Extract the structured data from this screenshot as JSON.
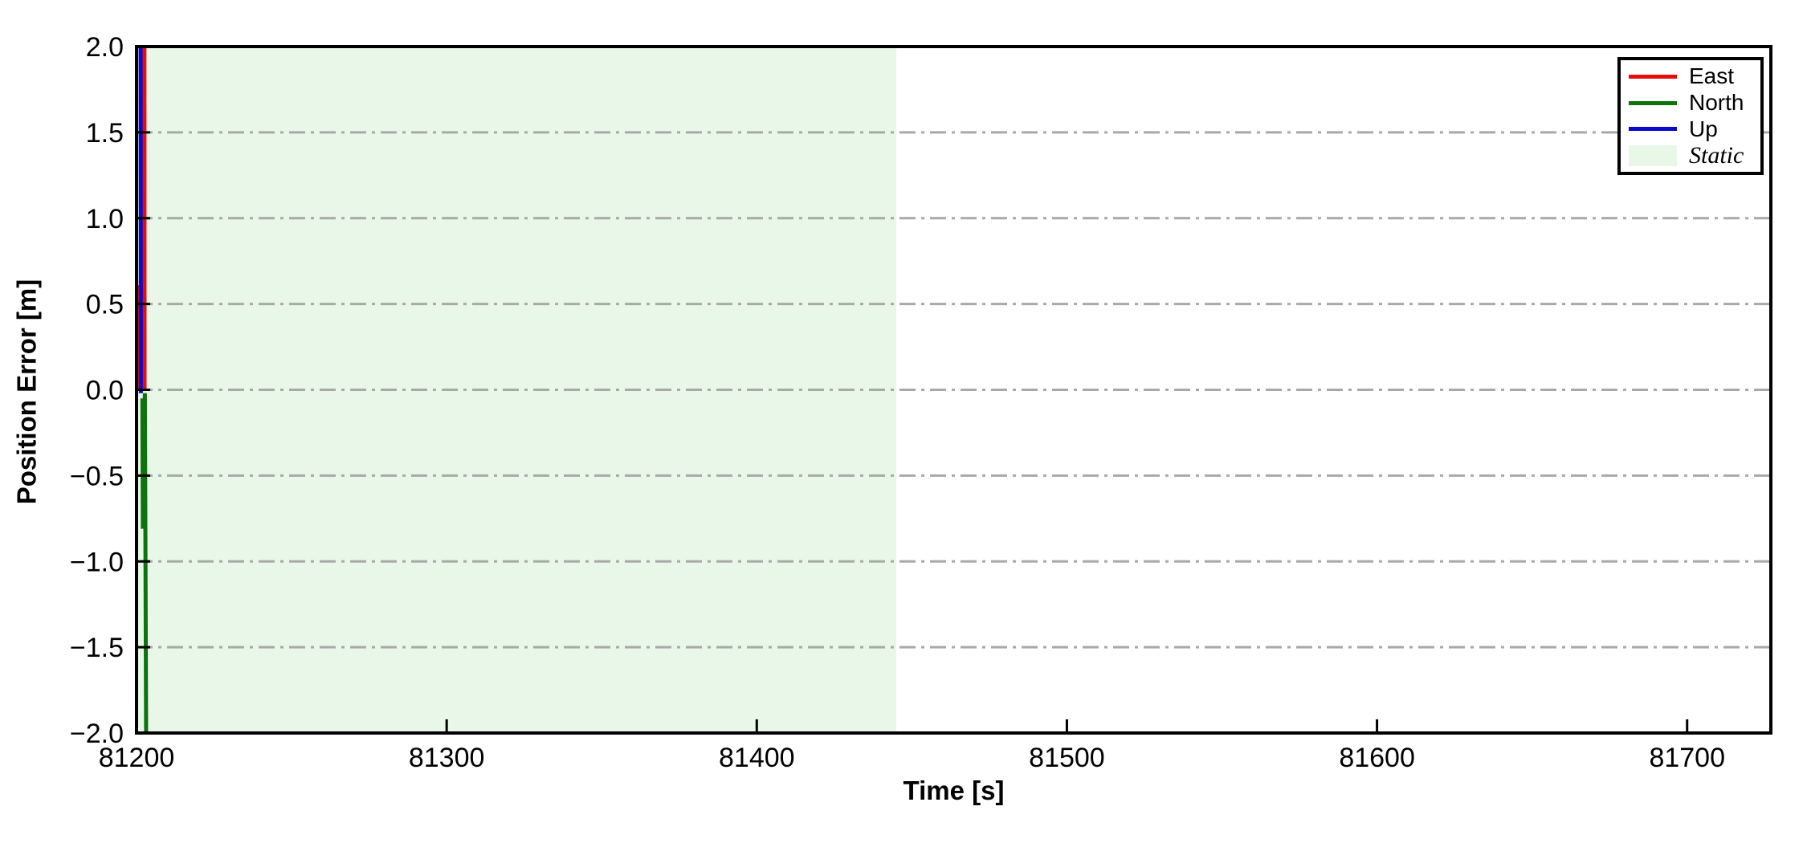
{
  "chart_data": {
    "type": "line",
    "title": "",
    "xlabel": "Time [s]",
    "ylabel": "Position Error [m]",
    "xlim": [
      81200,
      81727
    ],
    "ylim": [
      -2.0,
      2.0
    ],
    "xticks": [
      81200,
      81300,
      81400,
      81500,
      81600,
      81700
    ],
    "yticks": [
      -2.0,
      -1.5,
      -1.0,
      -0.5,
      0.0,
      0.5,
      1.0,
      1.5,
      2.0
    ],
    "grid": {
      "axis": "y",
      "style": "dash-dot",
      "color": "#a9a9a9"
    },
    "legend_position": "upper right",
    "static_region": {
      "label": "Static",
      "x_start": 81200,
      "x_end": 81445,
      "color": "#e8f7e8"
    },
    "series": [
      {
        "name": "East",
        "color": "#e60d0d",
        "points": [
          [
            81200.55,
            0.61
          ],
          [
            81200.9,
            0.02
          ],
          [
            81202.45,
            0.03
          ],
          [
            81202.5,
            2.6
          ],
          [
            81202.55,
            2.6
          ],
          [
            81202.6,
            0.0
          ]
        ]
      },
      {
        "name": "North",
        "color": "#0e730e",
        "points": [
          [
            81201.9,
            -0.05
          ],
          [
            81202.05,
            -0.81
          ],
          [
            81202.7,
            -0.02
          ],
          [
            81203.2,
            -2.6
          ],
          [
            81203.3,
            -2.6
          ]
        ]
      },
      {
        "name": "Up",
        "color": "#0b0bcc",
        "points": [
          [
            81201.3,
            2.6
          ],
          [
            81201.4,
            -0.02
          ]
        ]
      }
    ]
  },
  "legend": {
    "entries": [
      {
        "label": "East"
      },
      {
        "label": "North"
      },
      {
        "label": "Up"
      },
      {
        "label": "Static"
      }
    ]
  }
}
